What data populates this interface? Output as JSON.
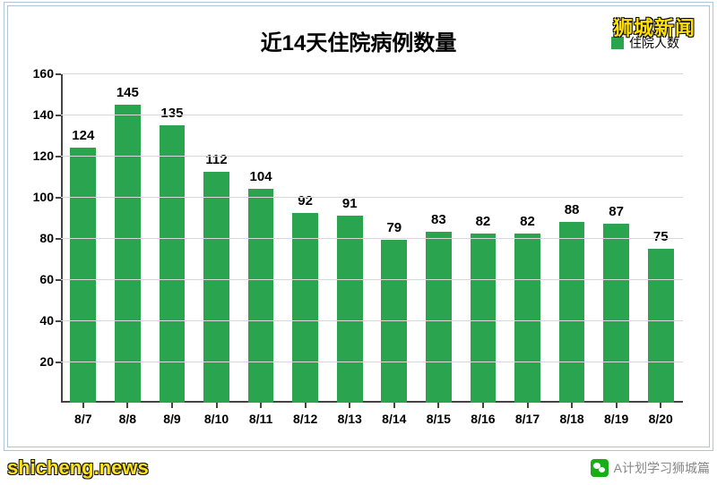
{
  "chart": {
    "type": "bar",
    "title": "近14天住院病例数量",
    "title_fontsize": 24,
    "title_weight": "bold",
    "title_color": "#000000",
    "legend": {
      "label": "住院人数",
      "color": "#2aa44f",
      "position": "top-right",
      "fontsize": 14
    },
    "categories": [
      "8/7",
      "8/8",
      "8/9",
      "8/10",
      "8/11",
      "8/12",
      "8/13",
      "8/14",
      "8/15",
      "8/16",
      "8/17",
      "8/18",
      "8/19",
      "8/20"
    ],
    "values": [
      124,
      145,
      135,
      112,
      104,
      92,
      91,
      79,
      83,
      82,
      82,
      88,
      87,
      75
    ],
    "bar_color": "#2aa44f",
    "bar_width": 0.58,
    "value_label_fontsize": 15,
    "value_label_color": "#000000",
    "x_label_fontsize": 14,
    "y_label_fontsize": 14,
    "ylim": [
      0,
      160
    ],
    "ytick_step": 20,
    "grid_color": "#d8d8d8",
    "axis_color": "#444444",
    "background_color": "#ffffff",
    "border_color": "#b0c4d8"
  },
  "watermarks": {
    "top_right": "狮城新闻",
    "top_right_color": "#ffe000",
    "top_right_fontsize": 22,
    "bottom_left": "shicheng.news",
    "bottom_left_color": "#ffe000",
    "bottom_left_fontsize": 22,
    "bottom_right": "A计划学习狮城篇",
    "bottom_right_color": "#888888",
    "bottom_right_fontsize": 14
  }
}
